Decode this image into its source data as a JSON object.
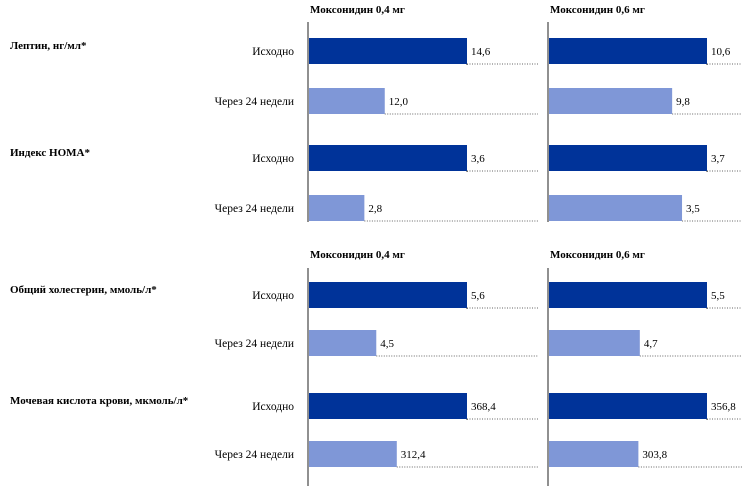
{
  "chart_data": {
    "type": "bar",
    "orientation": "horizontal",
    "columns": [
      "Моксонидин 0,4 мг",
      "Моксонидин 0,6 мг"
    ],
    "row_labels": [
      "Исходно",
      "Через 24 недели"
    ],
    "colors": {
      "baseline": "#003399",
      "after": "#7f97d7",
      "connector": "#333333"
    },
    "groups": [
      {
        "label": "Лептин, нг/мл*",
        "values": {
          "0.4": [
            14.6,
            12.0
          ],
          "0.6": [
            10.6,
            9.8
          ]
        },
        "labels": {
          "0.4": [
            "14,6",
            "12,0"
          ],
          "0.6": [
            "10,6",
            "9,8"
          ]
        }
      },
      {
        "label": "Индекс НОМА*",
        "values": {
          "0.4": [
            3.6,
            2.8
          ],
          "0.6": [
            3.7,
            3.5
          ]
        },
        "labels": {
          "0.4": [
            "3,6",
            "2,8"
          ],
          "0.6": [
            "3,7",
            "3,5"
          ]
        }
      },
      {
        "label": "Общий холестерин, ммоль/л*",
        "values": {
          "0.4": [
            5.6,
            4.5
          ],
          "0.6": [
            5.5,
            4.7
          ]
        },
        "labels": {
          "0.4": [
            "5,6",
            "4,5"
          ],
          "0.6": [
            "5,5",
            "4,7"
          ]
        }
      },
      {
        "label": "Мочевая кислота крови, мкмоль/л*",
        "values": {
          "0.4": [
            368.4,
            312.4
          ],
          "0.6": [
            356.8,
            303.8
          ]
        },
        "labels": {
          "0.4": [
            "368,4",
            "312,4"
          ],
          "0.6": [
            "356,8",
            "303,8"
          ]
        }
      }
    ]
  }
}
